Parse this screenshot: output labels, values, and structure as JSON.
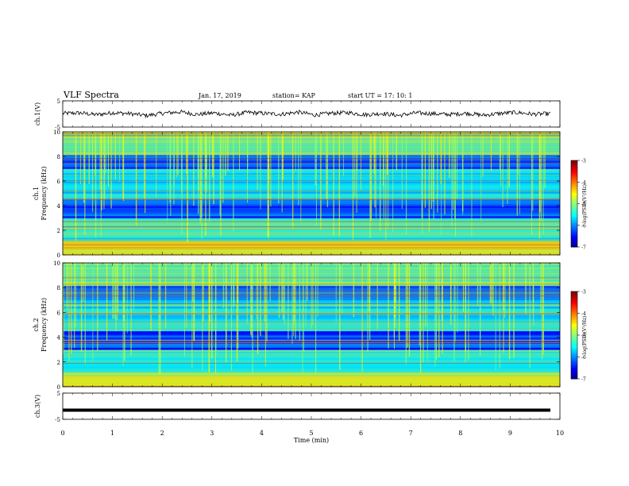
{
  "header": {
    "title": "VLF Spectra",
    "date": "Jan. 17, 2019",
    "station": "station= KAP",
    "start": "start  UT =   17: 10: 1"
  },
  "chart_data": [
    {
      "type": "line",
      "panel": "ch1-waveform",
      "ylabel": "ch.1(V)",
      "ylim": [
        -5,
        5
      ],
      "yticks": [
        "5",
        "-5"
      ],
      "xlim": [
        0,
        10
      ],
      "series": [
        {
          "values": [
            0.2,
            0.4,
            -0.3,
            0.5,
            0.1,
            -0.6,
            0.3,
            0.8,
            -0.2,
            0.4,
            -0.5,
            0.6,
            0.2,
            -0.1,
            0.7,
            -0.4,
            0.3,
            0.5,
            -0.3,
            0.2,
            -0.6,
            0.4,
            0.1,
            -0.2,
            0.3,
            -0.5,
            0.2,
            0.6,
            -0.1,
            0.1
          ]
        }
      ]
    },
    {
      "type": "heatmap",
      "panel": "ch1-spectrogram",
      "ylabel": "ch.1",
      "ylabel2": "Frequency (kHz)",
      "ylim": [
        0,
        10
      ],
      "yticks": [
        "0",
        "2",
        "4",
        "6",
        "8",
        "10"
      ],
      "xlim": [
        0,
        10
      ],
      "colorbar": {
        "label": "log(PSD)(V²/Hz)",
        "range": [
          -7,
          -3
        ],
        "ticks": [
          "-3",
          "-4",
          "-5",
          "-6",
          "-7"
        ]
      }
    },
    {
      "type": "heatmap",
      "panel": "ch2-spectrogram",
      "ylabel": "ch.2",
      "ylabel2": "Frequency (kHz)",
      "ylim": [
        0,
        10
      ],
      "yticks": [
        "0",
        "2",
        "4",
        "6",
        "8",
        "10"
      ],
      "xlim": [
        0,
        10
      ],
      "colorbar": {
        "label": "log(PSD)(V²/Hz)",
        "range": [
          -7,
          -3
        ],
        "ticks": [
          "-3",
          "-4",
          "-5",
          "-6",
          "-7"
        ]
      }
    },
    {
      "type": "line",
      "panel": "ch3-waveform",
      "ylabel": "ch.3(V)",
      "ylim": [
        -5,
        5
      ],
      "yticks": [
        "5",
        "-5"
      ],
      "xlim": [
        0,
        10
      ],
      "series": [
        {
          "values": [
            -1.5,
            -1.5
          ]
        }
      ]
    }
  ],
  "xaxis": {
    "label": "Time (min)",
    "ticks": [
      "0",
      "1",
      "2",
      "3",
      "4",
      "5",
      "6",
      "7",
      "8",
      "9",
      "10"
    ]
  }
}
